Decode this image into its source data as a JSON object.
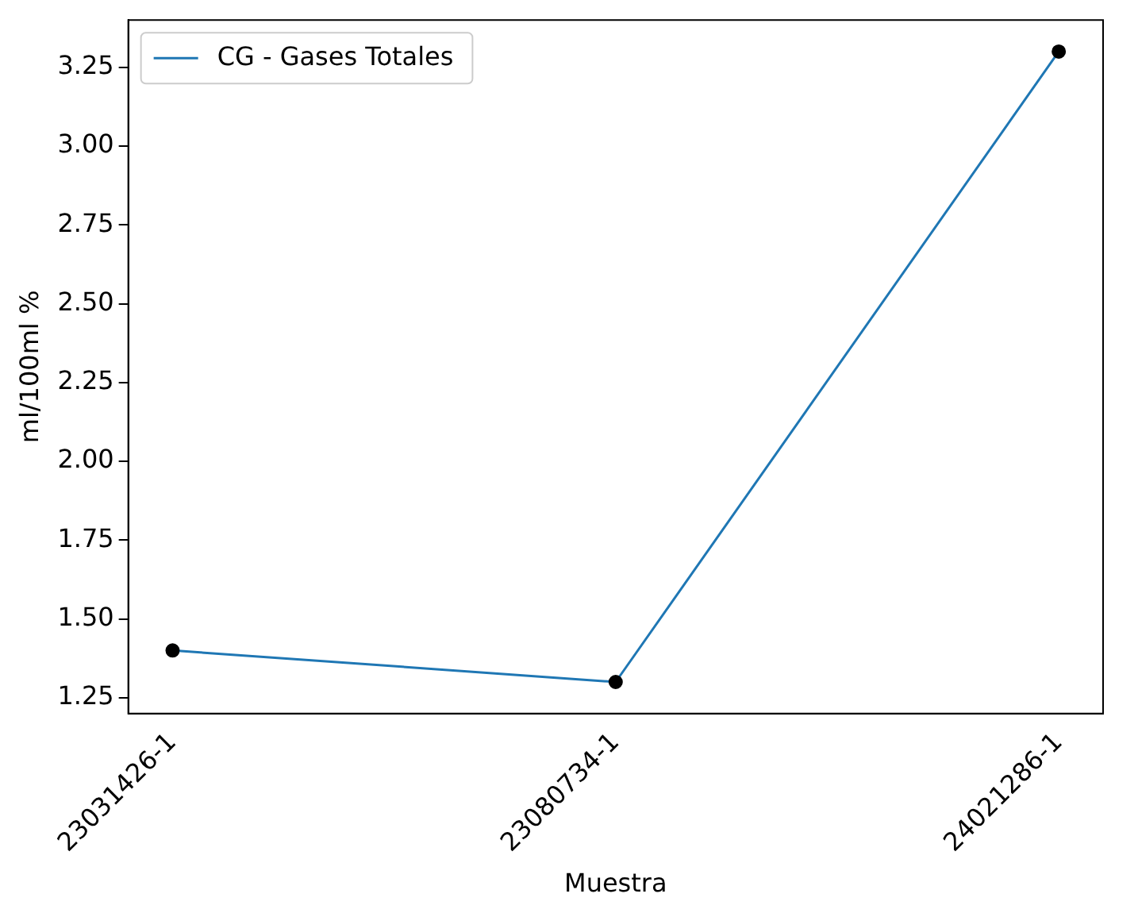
{
  "chart_data": {
    "type": "line",
    "xlabel": "Muestra",
    "ylabel": "ml/100ml %",
    "categories": [
      "23031426-1",
      "23080734-1",
      "24021286-1"
    ],
    "series": [
      {
        "name": "CG - Gases Totales",
        "type": "line",
        "color": "#1f77b4",
        "values": [
          1.4,
          1.3,
          3.3
        ]
      },
      {
        "type": "scatter",
        "color": "#000000",
        "values": [
          1.4,
          1.3,
          3.3
        ],
        "marker": "circle"
      }
    ],
    "ylim": [
      1.2,
      3.4
    ],
    "yticks": [
      {
        "value": 1.25,
        "label": "1.25"
      },
      {
        "value": 1.5,
        "label": "1.50"
      },
      {
        "value": 1.75,
        "label": "1.75"
      },
      {
        "value": 2,
        "label": "2.00"
      },
      {
        "value": 2.25,
        "label": "2.25"
      },
      {
        "value": 2.5,
        "label": "2.50"
      },
      {
        "value": 2.75,
        "label": "2.75"
      },
      {
        "value": 3,
        "label": "3.00"
      },
      {
        "value": 3.25,
        "label": "3.25"
      }
    ],
    "grid": false,
    "legend": "top left",
    "line_style": "solid"
  }
}
